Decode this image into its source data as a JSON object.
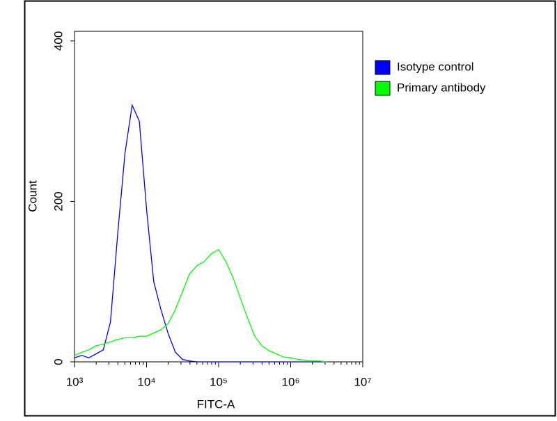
{
  "chart_data": {
    "type": "line",
    "x_label": "FITC-A",
    "y_label": "Count",
    "log_x": true,
    "legend": "top-right",
    "x": [
      1000,
      1259,
      1585,
      1995,
      2512,
      3162,
      3981,
      5012,
      6310,
      7943,
      10000,
      12589,
      15849,
      19953,
      25119,
      31623,
      39811,
      50119,
      63096,
      79433,
      100000,
      125893,
      158489,
      199526,
      251189,
      316228,
      398107,
      501187,
      630957,
      794328,
      1000000,
      1258925,
      1584893,
      1995262,
      2511886,
      3162278
    ],
    "series": [
      {
        "name": "Isotype control",
        "color": "#0000ff",
        "values": [
          5,
          8,
          5,
          10,
          15,
          50,
          160,
          260,
          320,
          300,
          190,
          100,
          65,
          35,
          12,
          3,
          1,
          0,
          0,
          0,
          0,
          0,
          0,
          0,
          0,
          0,
          0,
          0,
          0,
          0,
          0,
          0,
          0,
          0,
          0,
          0
        ]
      },
      {
        "name": "Primary antibody",
        "color": "#00ff00",
        "values": [
          8,
          12,
          15,
          20,
          22,
          25,
          28,
          30,
          30,
          32,
          32,
          36,
          40,
          48,
          65,
          88,
          110,
          120,
          125,
          135,
          140,
          125,
          105,
          80,
          55,
          32,
          20,
          14,
          10,
          6,
          5,
          3,
          2,
          1,
          1,
          0
        ]
      }
    ],
    "xlim": [
      1000,
      10000000
    ],
    "xticks": [
      {
        "value": 1000,
        "label": "10³"
      },
      {
        "value": 10000,
        "label": "10⁴"
      },
      {
        "value": 100000,
        "label": "10⁵"
      },
      {
        "value": 1000000,
        "label": "10⁶"
      },
      {
        "value": 10000000,
        "label": "10⁷"
      }
    ],
    "ylim": [
      0,
      412
    ],
    "yticks": [
      0,
      200,
      400
    ]
  }
}
